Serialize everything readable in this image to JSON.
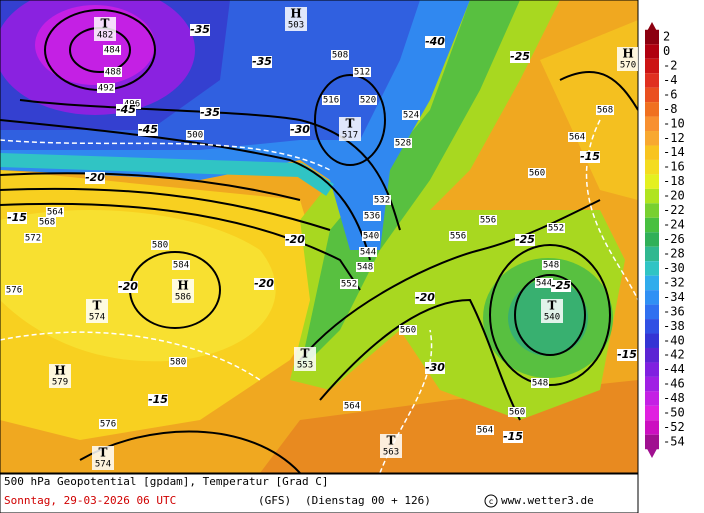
{
  "map_labels": {
    "systems": [
      {
        "symbol": "T",
        "value": "482"
      },
      {
        "symbol": "H",
        "value": "503"
      },
      {
        "symbol": "H",
        "value": "570"
      },
      {
        "symbol": "T",
        "value": "517"
      },
      {
        "symbol": "H",
        "value": "586"
      },
      {
        "symbol": "T",
        "value": "574"
      },
      {
        "symbol": "T",
        "value": "540"
      },
      {
        "symbol": "T",
        "value": "553"
      },
      {
        "symbol": "H",
        "value": "579"
      },
      {
        "symbol": "T",
        "value": "574"
      },
      {
        "symbol": "T",
        "value": "563"
      }
    ],
    "heights": [
      "484",
      "488",
      "492",
      "496",
      "500",
      "508",
      "512",
      "516",
      "520",
      "524",
      "528",
      "532",
      "536",
      "540",
      "544",
      "548",
      "552",
      "556",
      "556",
      "560",
      "564",
      "568",
      "564",
      "568",
      "572",
      "576",
      "580",
      "584",
      "580",
      "576",
      "564",
      "564",
      "560",
      "560",
      "552",
      "548",
      "544",
      "548"
    ],
    "temperatures": [
      "-35",
      "-40",
      "-35",
      "-45",
      "-45",
      "-35",
      "-30",
      "-25",
      "-15",
      "-20",
      "-15",
      "-20",
      "-20",
      "-20",
      "-20",
      "-30",
      "-15",
      "-15",
      "-15",
      "-25",
      "-25"
    ]
  },
  "colorbar": [
    {
      "value": 2,
      "color": "#8c0010"
    },
    {
      "value": 0,
      "color": "#b00010"
    },
    {
      "value": -2,
      "color": "#cc1414"
    },
    {
      "value": -4,
      "color": "#e03020"
    },
    {
      "value": -6,
      "color": "#ea5020"
    },
    {
      "value": -8,
      "color": "#f07020"
    },
    {
      "value": -10,
      "color": "#f89030"
    },
    {
      "value": -12,
      "color": "#f8a830"
    },
    {
      "value": -14,
      "color": "#f8c420"
    },
    {
      "value": -16,
      "color": "#f4dc20"
    },
    {
      "value": -18,
      "color": "#e4f020"
    },
    {
      "value": -20,
      "color": "#b0e420"
    },
    {
      "value": -22,
      "color": "#78d030"
    },
    {
      "value": -24,
      "color": "#48c040"
    },
    {
      "value": -26,
      "color": "#30b058"
    },
    {
      "value": -28,
      "color": "#30b890"
    },
    {
      "value": -30,
      "color": "#30c4c4"
    },
    {
      "value": -32,
      "color": "#30acec"
    },
    {
      "value": -34,
      "color": "#3090f4"
    },
    {
      "value": -36,
      "color": "#3070f0"
    },
    {
      "value": -38,
      "color": "#3050e4"
    },
    {
      "value": -40,
      "color": "#3434d4"
    },
    {
      "value": -42,
      "color": "#5c24d4"
    },
    {
      "value": -44,
      "color": "#8020e0"
    },
    {
      "value": -46,
      "color": "#a020e4"
    },
    {
      "value": -48,
      "color": "#c420e4"
    },
    {
      "value": -50,
      "color": "#e020e0"
    },
    {
      "value": -52,
      "color": "#cc10c0"
    },
    {
      "value": -54,
      "color": "#a01090"
    }
  ],
  "footer": {
    "title": "500 hPa Geopotential [gpdam], Temperatur [Grad C]",
    "date": "Sonntag, 29-03-2026  06 UTC",
    "model": "(GFS)",
    "run": "(Dienstag 00 + 126)",
    "source": "www.wetter3.de"
  }
}
